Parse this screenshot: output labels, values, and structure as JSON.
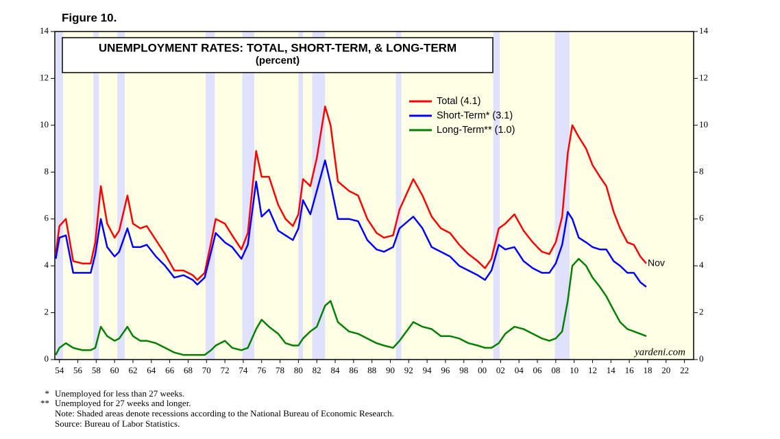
{
  "chart_data": {
    "type": "line",
    "figure_label": "Figure 10.",
    "title": "UNEMPLOYMENT RATES: TOTAL, SHORT-TERM, & LONG-TERM",
    "subtitle": "(percent)",
    "annotation": "Nov",
    "watermark": "yardeni.com",
    "x": [
      1953.6,
      1954.0,
      1954.7,
      1955.5,
      1956.5,
      1957.4,
      1957.9,
      1958.5,
      1959.2,
      1960.0,
      1960.5,
      1961.4,
      1962.0,
      1962.8,
      1963.5,
      1964.5,
      1965.5,
      1966.5,
      1967.5,
      1968.5,
      1969.0,
      1969.8,
      1970.5,
      1971.0,
      1972.0,
      1972.8,
      1973.8,
      1974.5,
      1975.4,
      1976.0,
      1976.8,
      1977.8,
      1978.6,
      1979.4,
      1980.0,
      1980.5,
      1981.3,
      1982.0,
      1982.9,
      1983.5,
      1984.3,
      1985.5,
      1986.5,
      1987.5,
      1988.5,
      1989.3,
      1990.3,
      1991.0,
      1992.5,
      1993.5,
      1994.5,
      1995.5,
      1996.5,
      1997.5,
      1998.5,
      1999.5,
      2000.3,
      2001.0,
      2001.8,
      2002.5,
      2003.5,
      2004.5,
      2005.5,
      2006.5,
      2007.3,
      2008.0,
      2008.7,
      2009.3,
      2009.8,
      2010.5,
      2011.3,
      2012.0,
      2012.8,
      2013.5,
      2014.3,
      2015.0,
      2015.8,
      2016.5,
      2017.2,
      2017.85
    ],
    "series": [
      {
        "name": "Total (4.1)",
        "color": "#ff0000",
        "values": [
          4.5,
          5.7,
          6.0,
          4.2,
          4.1,
          4.1,
          5.0,
          7.4,
          5.8,
          5.2,
          5.5,
          7.0,
          5.8,
          5.6,
          5.7,
          5.1,
          4.5,
          3.8,
          3.8,
          3.6,
          3.4,
          3.7,
          5.0,
          6.0,
          5.8,
          5.3,
          4.7,
          5.4,
          8.9,
          7.8,
          7.8,
          6.6,
          6.0,
          5.7,
          6.2,
          7.7,
          7.4,
          8.6,
          10.8,
          10.0,
          7.6,
          7.2,
          7.0,
          6.0,
          5.4,
          5.2,
          5.3,
          6.4,
          7.7,
          7.0,
          6.1,
          5.6,
          5.4,
          4.9,
          4.5,
          4.2,
          3.9,
          4.3,
          5.6,
          5.8,
          6.2,
          5.5,
          5.0,
          4.6,
          4.5,
          5.0,
          6.1,
          8.8,
          10.0,
          9.5,
          9.0,
          8.3,
          7.8,
          7.4,
          6.3,
          5.6,
          5.0,
          4.9,
          4.4,
          4.1
        ]
      },
      {
        "name": "Short-Term* (3.1)",
        "color": "#0000ff",
        "values": [
          4.3,
          5.2,
          5.3,
          3.7,
          3.7,
          3.7,
          4.5,
          6.0,
          4.8,
          4.4,
          4.6,
          5.6,
          4.8,
          4.8,
          4.9,
          4.4,
          4.0,
          3.5,
          3.6,
          3.4,
          3.2,
          3.5,
          4.6,
          5.4,
          5.0,
          4.8,
          4.3,
          4.9,
          7.6,
          6.1,
          6.4,
          5.5,
          5.3,
          5.1,
          5.6,
          6.8,
          6.2,
          7.2,
          8.5,
          7.5,
          6.0,
          6.0,
          5.9,
          5.1,
          4.7,
          4.6,
          4.8,
          5.6,
          6.1,
          5.6,
          4.8,
          4.6,
          4.4,
          4.0,
          3.8,
          3.6,
          3.4,
          3.8,
          4.9,
          4.7,
          4.8,
          4.2,
          3.9,
          3.7,
          3.7,
          4.1,
          4.9,
          6.3,
          6.0,
          5.2,
          5.0,
          4.8,
          4.7,
          4.7,
          4.2,
          4.0,
          3.7,
          3.7,
          3.3,
          3.1
        ]
      },
      {
        "name": "Long-Term** (1.0)",
        "color": "#008000",
        "values": [
          0.2,
          0.5,
          0.7,
          0.5,
          0.4,
          0.4,
          0.5,
          1.4,
          1.0,
          0.8,
          0.9,
          1.4,
          1.0,
          0.8,
          0.8,
          0.7,
          0.5,
          0.3,
          0.2,
          0.2,
          0.2,
          0.2,
          0.4,
          0.6,
          0.8,
          0.5,
          0.4,
          0.5,
          1.3,
          1.7,
          1.4,
          1.1,
          0.7,
          0.6,
          0.6,
          0.9,
          1.2,
          1.4,
          2.3,
          2.5,
          1.6,
          1.2,
          1.1,
          0.9,
          0.7,
          0.6,
          0.5,
          0.8,
          1.6,
          1.4,
          1.3,
          1.0,
          1.0,
          0.9,
          0.7,
          0.6,
          0.5,
          0.5,
          0.7,
          1.1,
          1.4,
          1.3,
          1.1,
          0.9,
          0.8,
          0.9,
          1.2,
          2.5,
          4.0,
          4.3,
          4.0,
          3.5,
          3.1,
          2.7,
          2.1,
          1.6,
          1.3,
          1.2,
          1.1,
          1.0
        ]
      }
    ],
    "recessions": [
      [
        1953.6,
        1954.4
      ],
      [
        1957.7,
        1958.3
      ],
      [
        1960.3,
        1961.1
      ],
      [
        1969.9,
        1970.9
      ],
      [
        1973.9,
        1975.2
      ],
      [
        1980.0,
        1980.5
      ],
      [
        1981.5,
        1982.9
      ],
      [
        1990.6,
        1991.2
      ],
      [
        2001.2,
        2001.9
      ],
      [
        2007.9,
        2009.5
      ]
    ],
    "recession_color": "#e0e0ff",
    "background_color": "#ffffe6",
    "xlim": [
      1953.5,
      2023
    ],
    "ylim": [
      0,
      14
    ],
    "yticks": [
      0,
      2,
      4,
      6,
      8,
      10,
      12,
      14
    ],
    "xticks": [
      {
        "value": 1954,
        "label": "54"
      },
      {
        "value": 1956,
        "label": "56"
      },
      {
        "value": 1958,
        "label": "58"
      },
      {
        "value": 1960,
        "label": "60"
      },
      {
        "value": 1962,
        "label": "62"
      },
      {
        "value": 1964,
        "label": "64"
      },
      {
        "value": 1966,
        "label": "66"
      },
      {
        "value": 1968,
        "label": "68"
      },
      {
        "value": 1970,
        "label": "70"
      },
      {
        "value": 1972,
        "label": "72"
      },
      {
        "value": 1974,
        "label": "74"
      },
      {
        "value": 1976,
        "label": "76"
      },
      {
        "value": 1978,
        "label": "78"
      },
      {
        "value": 1980,
        "label": "80"
      },
      {
        "value": 1982,
        "label": "82"
      },
      {
        "value": 1984,
        "label": "84"
      },
      {
        "value": 1986,
        "label": "86"
      },
      {
        "value": 1988,
        "label": "88"
      },
      {
        "value": 1990,
        "label": "90"
      },
      {
        "value": 1992,
        "label": "92"
      },
      {
        "value": 1994,
        "label": "94"
      },
      {
        "value": 1996,
        "label": "96"
      },
      {
        "value": 1998,
        "label": "98"
      },
      {
        "value": 2000,
        "label": "00"
      },
      {
        "value": 2002,
        "label": "02"
      },
      {
        "value": 2004,
        "label": "04"
      },
      {
        "value": 2006,
        "label": "06"
      },
      {
        "value": 2008,
        "label": "08"
      },
      {
        "value": 2010,
        "label": "10"
      },
      {
        "value": 2012,
        "label": "12"
      },
      {
        "value": 2014,
        "label": "14"
      },
      {
        "value": 2016,
        "label": "16"
      },
      {
        "value": 2018,
        "label": "18"
      },
      {
        "value": 2020,
        "label": "20"
      },
      {
        "value": 2022,
        "label": "22"
      }
    ],
    "footnotes": [
      {
        "marker": "*",
        "text": "Unemployed for less than 27 weeks."
      },
      {
        "marker": "**",
        "text": "Unemployed for 27 weeks and longer."
      }
    ],
    "notes": [
      "Note: Shaded areas denote recessions according to the National Bureau of Economic Research.",
      "Source: Bureau of Labor Statistics."
    ]
  }
}
